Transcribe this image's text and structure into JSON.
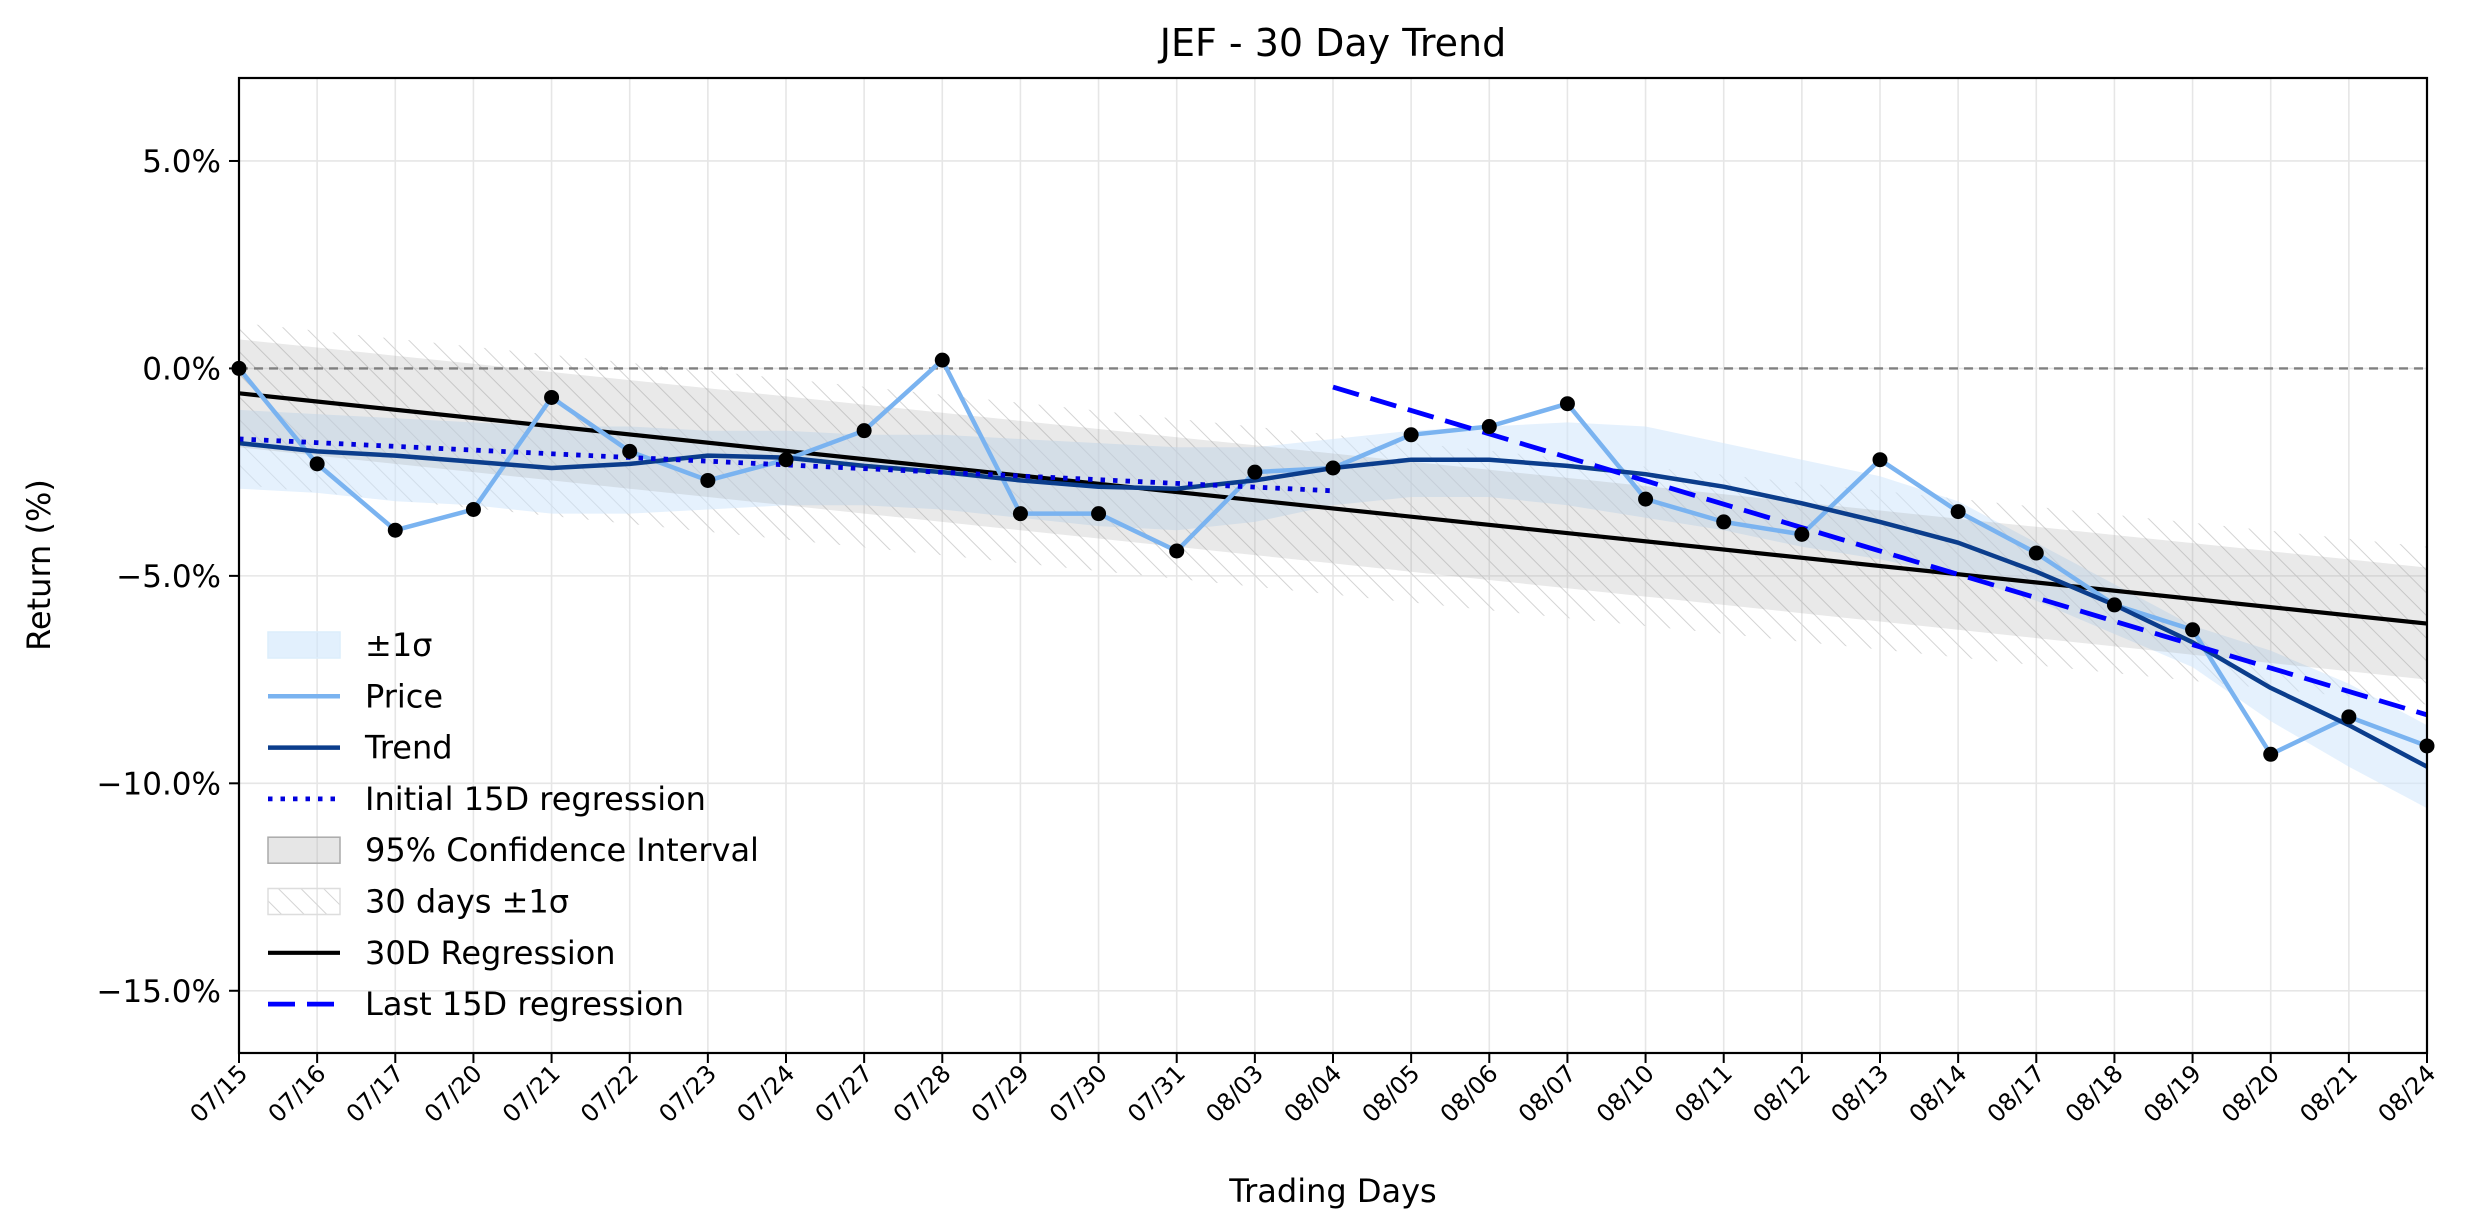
{
  "chart_data": {
    "type": "line",
    "title": "JEF - 30 Day Trend",
    "xlabel": "Trading Days",
    "ylabel": "Return (%)",
    "ylim": [
      -16.5,
      7.0
    ],
    "y_ticks": [
      5.0,
      0.0,
      -5.0,
      -10.0,
      -15.0
    ],
    "y_tick_labels": [
      "5.0%",
      "0.0%",
      "−5.0%",
      "−10.0%",
      "−15.0%"
    ],
    "grid": true,
    "legend_position": "lower-left",
    "reference_line": {
      "y": 0.0,
      "style": "dashed",
      "color": "#808080"
    },
    "categories": [
      "07/15",
      "07/16",
      "07/17",
      "07/20",
      "07/21",
      "07/22",
      "07/23",
      "07/24",
      "07/27",
      "07/28",
      "07/29",
      "07/30",
      "07/31",
      "08/03",
      "08/04",
      "08/05",
      "08/06",
      "08/07",
      "08/10",
      "08/11",
      "08/12",
      "08/13",
      "08/14",
      "08/17",
      "08/18",
      "08/19",
      "08/20",
      "08/21",
      "08/24"
    ],
    "legend": [
      {
        "label": "±1σ",
        "kind": "patch-light"
      },
      {
        "label": "Price",
        "kind": "line-price"
      },
      {
        "label": "Trend",
        "kind": "line-trend"
      },
      {
        "label": "Initial 15D regression",
        "kind": "line-dotted"
      },
      {
        "label": "95% Confidence Interval",
        "kind": "patch-gray"
      },
      {
        "label": "30 days ±1σ",
        "kind": "patch-hatch"
      },
      {
        "label": "30D Regression",
        "kind": "line-black"
      },
      {
        "label": "Last 15D regression",
        "kind": "line-dashed"
      }
    ],
    "series": [
      {
        "name": "Price",
        "color": "#7ab3f0",
        "values": [
          0.0,
          -2.3,
          -3.9,
          -3.4,
          -0.7,
          -2.0,
          -2.7,
          -2.2,
          -1.5,
          0.2,
          -3.5,
          -3.5,
          -4.4,
          -2.5,
          -2.4,
          -1.6,
          -1.4,
          -0.85,
          -3.15,
          -3.7,
          -4.0,
          -2.2,
          -3.45,
          -4.45,
          -5.7,
          -6.3,
          -9.3,
          -8.4,
          -9.1
        ]
      },
      {
        "name": "Trend",
        "color": "#0b3d8c",
        "values": [
          -1.8,
          -2.0,
          -2.1,
          -2.25,
          -2.4,
          -2.3,
          -2.1,
          -2.15,
          -2.35,
          -2.5,
          -2.7,
          -2.85,
          -2.9,
          -2.7,
          -2.4,
          -2.2,
          -2.2,
          -2.35,
          -2.55,
          -2.85,
          -3.25,
          -3.7,
          -4.2,
          -4.9,
          -5.7,
          -6.6,
          -7.7,
          -8.6,
          -9.6
        ]
      },
      {
        "name": "±1σ band",
        "color": "#dceefc",
        "upper": [
          -1.0,
          -1.1,
          -1.2,
          -1.3,
          -1.4,
          -1.4,
          -1.5,
          -1.5,
          -1.6,
          -1.6,
          -1.7,
          -1.8,
          -1.9,
          -1.9,
          -1.7,
          -1.5,
          -1.4,
          -1.3,
          -1.4,
          -1.8,
          -2.2,
          -2.6,
          -3.2,
          -4.2,
          -5.2,
          -6.2,
          -6.8,
          -7.6,
          -8.6
        ],
        "lower": [
          -2.9,
          -3.0,
          -3.2,
          -3.3,
          -3.5,
          -3.5,
          -3.4,
          -3.3,
          -3.3,
          -3.4,
          -3.6,
          -3.8,
          -3.9,
          -3.7,
          -3.3,
          -3.1,
          -3.1,
          -3.3,
          -3.6,
          -3.9,
          -4.3,
          -4.6,
          -5.0,
          -5.6,
          -6.4,
          -7.2,
          -8.5,
          -9.6,
          -10.6
        ]
      },
      {
        "name": "Initial 15D regression",
        "color": "#0000dd",
        "x_range": [
          "07/15",
          "08/04"
        ],
        "y_range": [
          -1.7,
          -2.95
        ]
      },
      {
        "name": "Last 15D regression",
        "color": "#0000ff",
        "x_range": [
          "08/04",
          "08/24"
        ],
        "y_range": [
          -0.45,
          -8.35
        ]
      },
      {
        "name": "30D Regression",
        "color": "#000000",
        "x_range": [
          "07/15",
          "08/24"
        ],
        "y_range": [
          -0.6,
          -6.15
        ]
      },
      {
        "name": "95% Confidence Interval",
        "color": "#c8c8c8",
        "upper_range": [
          0.7,
          -4.8
        ],
        "lower_range": [
          -1.9,
          -7.5
        ]
      },
      {
        "name": "30 days ±1σ",
        "color": "#d8d8d8",
        "upper_range": [
          1.1,
          -4.3
        ],
        "lower_range": [
          -2.8,
          -8.1
        ]
      }
    ]
  }
}
